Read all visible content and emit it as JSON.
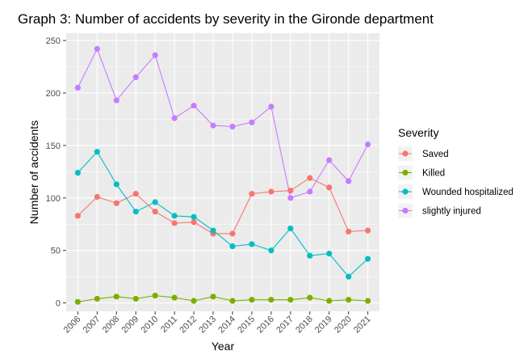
{
  "chart_data": {
    "type": "line",
    "title": "Graph 3: Number of accidents by severity in the Gironde department",
    "xlabel": "Year",
    "ylabel": "Number of accidents",
    "x": [
      "2006",
      "2007",
      "2008",
      "2009",
      "2010",
      "2011",
      "2012",
      "2013",
      "2014",
      "2015",
      "2016",
      "2017",
      "2018",
      "2019",
      "2020",
      "2021"
    ],
    "yticks": [
      0,
      50,
      100,
      150,
      200,
      250
    ],
    "ylim": [
      -8,
      257
    ],
    "grid": true,
    "legend": {
      "title": "Severity",
      "position": "right"
    },
    "series": [
      {
        "name": "Saved",
        "color": "#F8766D",
        "values": [
          83,
          101,
          95,
          104,
          87,
          76,
          77,
          66,
          66,
          104,
          106,
          107,
          119,
          110,
          68,
          69
        ]
      },
      {
        "name": "Killed",
        "color": "#7CAE00",
        "values": [
          1,
          4,
          6,
          4,
          7,
          5,
          2,
          6,
          2,
          3,
          3,
          3,
          5,
          2,
          3,
          2
        ]
      },
      {
        "name": "Wounded hospitalized",
        "color": "#00BFC4",
        "values": [
          124,
          144,
          113,
          87,
          96,
          83,
          82,
          69,
          54,
          56,
          50,
          71,
          45,
          47,
          25,
          42
        ]
      },
      {
        "name": "slightly injured",
        "color": "#C77CFF",
        "values": [
          205,
          242,
          193,
          215,
          236,
          176,
          188,
          169,
          168,
          172,
          187,
          100,
          106,
          136,
          116,
          151
        ]
      }
    ]
  }
}
